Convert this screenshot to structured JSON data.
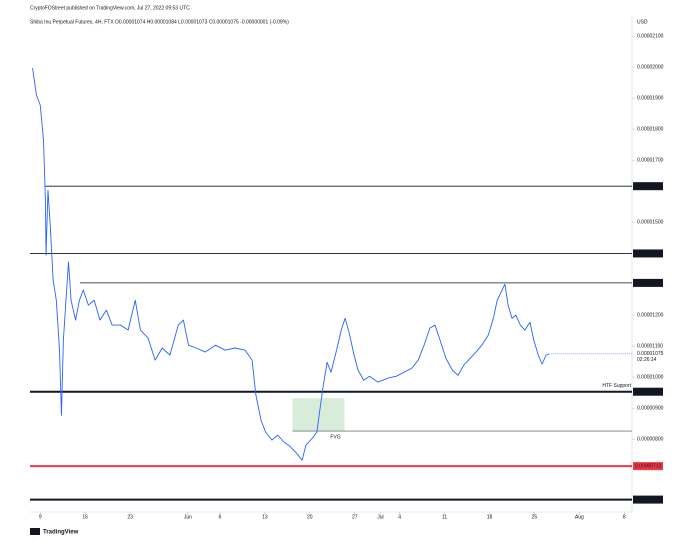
{
  "chart_data": {
    "type": "line",
    "published": "CryptoFOStreet published on TradingView.com, Jul 27, 2022 09:53 UTC",
    "title": "Shiba Inu Perpetual Futures, 4H, FTX  O0.00001074 H0.00001084 L0.00001073 C0.00001075 -0.00000001 (-0.09%)",
    "currency": "USD",
    "brand": "TradingView",
    "color": "#2962ff",
    "x": [
      127.8,
      128.4,
      129.0,
      129.5,
      129.8,
      129.9,
      130.2,
      130.6,
      131.0,
      131.5,
      132.0,
      132.3,
      132.6,
      133.0,
      133.4,
      133.8,
      134.5,
      135.1,
      135.7,
      136.5,
      137.4,
      138.3,
      139.3,
      140.2,
      141.5,
      142.7,
      143.8,
      144.6,
      145.8,
      146.9,
      148.0,
      149.2,
      150.5,
      151.3,
      152.1,
      153.3,
      154.7,
      156.3,
      157.8,
      159.4,
      160.9,
      162.0,
      162.6,
      163.4,
      164.1,
      165.1,
      166.0,
      167.0,
      167.9,
      168.8,
      169.8,
      170.4,
      171.4,
      172.1,
      172.6,
      173.1,
      173.7,
      174.3,
      175.1,
      175.9,
      176.5,
      177.1,
      177.9,
      178.5,
      179.4,
      180.3,
      181.6,
      183.2,
      184.5,
      185.7,
      186.9,
      187.9,
      188.8,
      189.7,
      190.5,
      191.3,
      192.2,
      193.2,
      194.1,
      195.0,
      196.0,
      196.9,
      197.8,
      198.8,
      199.6,
      200.2,
      200.8,
      201.4,
      201.9,
      202.5,
      203.1,
      203.8,
      204.5,
      205.3,
      205.9,
      206.6,
      207.2,
      207.8,
      208.3
    ],
    "values": [
      1.997e-05,
      1.91e-05,
      1.877e-05,
      1.765e-05,
      1.571e-05,
      1.394e-05,
      1.603e-05,
      1.474e-05,
      1.313e-05,
      1.248e-05,
      1.087e-05,
      8.77e-06,
      1.119e-05,
      1.248e-05,
      1.371e-05,
      1.248e-05,
      1.184e-05,
      1.248e-05,
      1.281e-05,
      1.232e-05,
      1.248e-05,
      1.184e-05,
      1.216e-05,
      1.168e-05,
      1.168e-05,
      1.152e-05,
      1.248e-05,
      1.152e-05,
      1.126e-05,
      1.055e-05,
      1.094e-05,
      1.071e-05,
      1.168e-05,
      1.184e-05,
      1.103e-05,
      1.094e-05,
      1.081e-05,
      1.103e-05,
      1.087e-05,
      1.094e-05,
      1.087e-05,
      1.055e-05,
      9.42e-06,
      8.61e-06,
      8.23e-06,
      7.97e-06,
      8.13e-06,
      7.9e-06,
      7.77e-06,
      7.58e-06,
      7.32e-06,
      7.81e-06,
      8.03e-06,
      8.23e-06,
      9e-06,
      9.74e-06,
      1.048e-05,
      1.016e-05,
      1.081e-05,
      1.152e-05,
      1.19e-05,
      1.145e-05,
      1.071e-05,
      1.023e-05,
      9.9e-06,
      1.003e-05,
      9.84e-06,
      9.97e-06,
      1.003e-05,
      1.016e-05,
      1.029e-05,
      1.055e-05,
      1.103e-05,
      1.158e-05,
      1.168e-05,
      1.119e-05,
      1.061e-05,
      1.023e-05,
      1.006e-05,
      1.039e-05,
      1.061e-05,
      1.081e-05,
      1.103e-05,
      1.135e-05,
      1.19e-05,
      1.248e-05,
      1.274e-05,
      1.3e-05,
      1.232e-05,
      1.19e-05,
      1.2e-05,
      1.168e-05,
      1.152e-05,
      1.177e-05,
      1.119e-05,
      1.071e-05,
      1.042e-05,
      1.071e-05,
      1.075e-05
    ],
    "last_price": {
      "value": 1.075e-05,
      "label": "0.00001075"
    },
    "countdown": "02:26:14",
    "xlim": [
      127.4,
      221.2
    ],
    "xticks": [
      {
        "value": 129,
        "label": "9"
      },
      {
        "value": 136,
        "label": "16"
      },
      {
        "value": 143,
        "label": "23"
      },
      {
        "value": 152,
        "label": "Jun"
      },
      {
        "value": 157,
        "label": "6"
      },
      {
        "value": 164,
        "label": "13"
      },
      {
        "value": 171,
        "label": "20"
      },
      {
        "value": 178,
        "label": "27"
      },
      {
        "value": 182,
        "label": "Jul"
      },
      {
        "value": 185,
        "label": "4"
      },
      {
        "value": 192,
        "label": "11"
      },
      {
        "value": 199,
        "label": "18"
      },
      {
        "value": 206,
        "label": "25"
      },
      {
        "value": 213,
        "label": "Aug"
      },
      {
        "value": 220,
        "label": "8"
      }
    ],
    "ylim": [
      5.65e-06,
      2.152e-05
    ],
    "yticks": [
      {
        "value": 2.1e-05,
        "label": "0.00002100"
      },
      {
        "value": 2e-05,
        "label": "0.00002000"
      },
      {
        "value": 1.9e-05,
        "label": "0.00001900"
      },
      {
        "value": 1.8e-05,
        "label": "0.00001800"
      },
      {
        "value": 1.7e-05,
        "label": "0.00001700"
      },
      {
        "value": 1.5e-05,
        "label": "0.00001500"
      },
      {
        "value": 1.2e-05,
        "label": "0.00001200"
      },
      {
        "value": 1.1e-05,
        "label": "0.00001100"
      },
      {
        "value": 1e-05,
        "label": "0.00001000"
      },
      {
        "value": 9e-06,
        "label": "0.00000900"
      },
      {
        "value": 8e-06,
        "label": "0.00000800"
      }
    ],
    "levels": [
      {
        "value": 1.616e-05,
        "from": 129.8,
        "color": "#131722"
      },
      {
        "value": 1.399e-05,
        "from": 127.4,
        "color": "#131722"
      },
      {
        "value": 1.304e-05,
        "from": 135.2,
        "color": "#131722"
      },
      {
        "value": 9.53e-06,
        "from": 127.4,
        "color": "#131722",
        "width": 2,
        "note": "HTF Support"
      },
      {
        "value": 7.13e-06,
        "from": 127.4,
        "color": "#f23645",
        "width": 2
      },
      {
        "value": 6.05e-06,
        "from": 127.4,
        "color": "#131722",
        "width": 2
      }
    ],
    "fvg": {
      "label": "FVG",
      "top": 9.32e-06,
      "bottom": 8.26e-06,
      "from": 168.3,
      "to": 176.4
    }
  }
}
